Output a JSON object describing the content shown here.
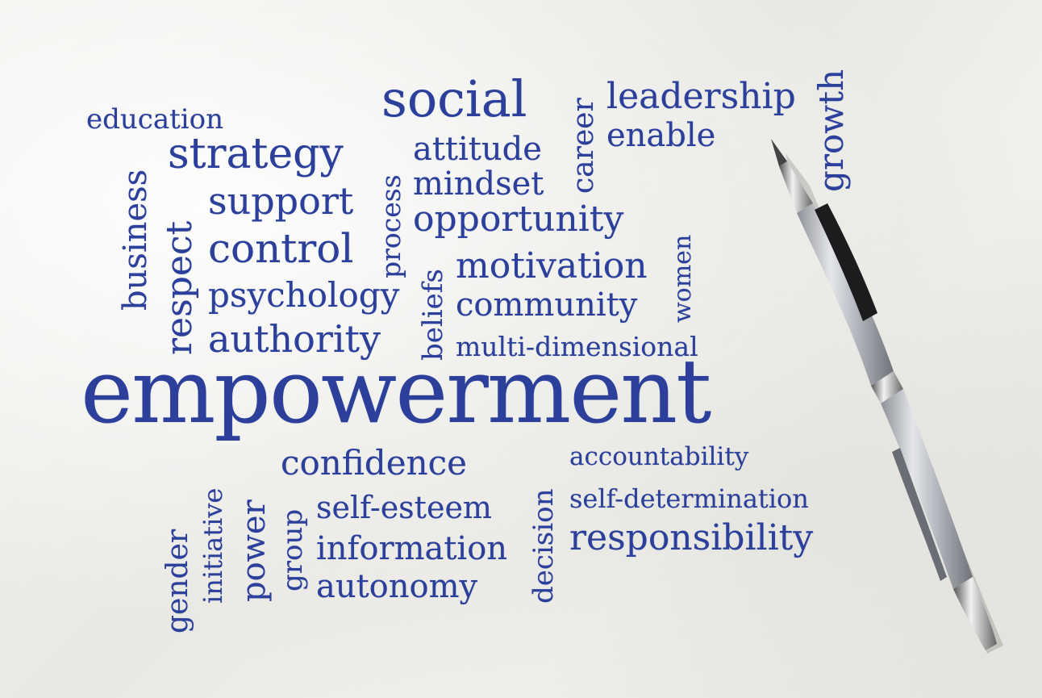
{
  "words": {
    "education": "education",
    "social": "social",
    "career": "career",
    "leadership": "leadership",
    "growth": "growth",
    "enable": "enable",
    "strategy": "strategy",
    "process": "process",
    "attitude": "attitude",
    "mindset": "mindset",
    "business": "business",
    "respect": "respect",
    "support": "support",
    "opportunity": "opportunity",
    "women": "women",
    "control": "control",
    "beliefs": "beliefs",
    "motivation": "motivation",
    "psychology": "psychology",
    "community": "community",
    "authority": "authority",
    "multi_dimensional": "multi-dimensional",
    "empowerment": "empowerment",
    "confidence": "confidence",
    "accountability": "accountability",
    "decision": "decision",
    "initiative": "initiative",
    "power": "power",
    "self_esteem": "self-esteem",
    "self_determination": "self-determination",
    "gender": "gender",
    "group": "group",
    "information": "information",
    "responsibility": "responsibility",
    "autonomy": "autonomy"
  },
  "colors": {
    "ink": "#2b3f9b",
    "paper": "#efeeea",
    "pen_body": "#b9bcc2",
    "pen_grip": "#1c1c1e"
  }
}
